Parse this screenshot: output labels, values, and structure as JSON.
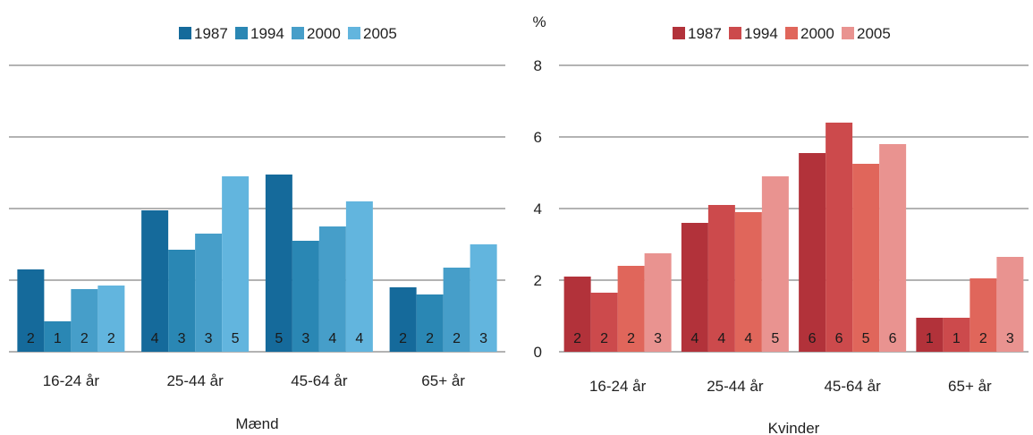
{
  "chart_data": [
    {
      "type": "bar",
      "title": "Mænd",
      "xlabel": "Mænd",
      "ylabel": "",
      "ylim": [
        0,
        8
      ],
      "grid": true,
      "legend": "top-center",
      "show_y_axis_labels": false,
      "categories": [
        "16-24 år",
        "25-44 år",
        "45-64 år",
        "65+ år"
      ],
      "series": [
        {
          "name": "1987",
          "color": "#156a9b",
          "values": [
            2.3,
            3.95,
            4.95,
            1.8
          ],
          "labels": [
            "2",
            "4",
            "5",
            "2"
          ]
        },
        {
          "name": "1994",
          "color": "#2a87b4",
          "values": [
            0.85,
            2.85,
            3.1,
            1.6
          ],
          "labels": [
            "1",
            "3",
            "3",
            "2"
          ]
        },
        {
          "name": "2000",
          "color": "#469ec9",
          "values": [
            1.75,
            3.3,
            3.5,
            2.35
          ],
          "labels": [
            "2",
            "3",
            "4",
            "2"
          ]
        },
        {
          "name": "2005",
          "color": "#62b5de",
          "values": [
            1.85,
            4.9,
            4.2,
            3.0
          ],
          "labels": [
            "2",
            "5",
            "4",
            "3"
          ]
        }
      ]
    },
    {
      "type": "bar",
      "title": "Kvinder",
      "xlabel": "Kvinder",
      "ylabel": "%",
      "ylim": [
        0,
        8
      ],
      "yticks": [
        "0",
        "2",
        "4",
        "6",
        "8"
      ],
      "grid": true,
      "legend": "top-center",
      "show_y_axis_labels": true,
      "categories": [
        "16-24 år",
        "25-44 år",
        "45-64 år",
        "65+ år"
      ],
      "series": [
        {
          "name": "1987",
          "color": "#b2323a",
          "values": [
            2.1,
            3.6,
            5.55,
            0.95
          ],
          "labels": [
            "2",
            "4",
            "6",
            "1"
          ]
        },
        {
          "name": "1994",
          "color": "#cc4a4c",
          "values": [
            1.65,
            4.1,
            6.4,
            0.95
          ],
          "labels": [
            "2",
            "4",
            "6",
            "1"
          ]
        },
        {
          "name": "2000",
          "color": "#e0665b",
          "values": [
            2.4,
            3.9,
            5.25,
            2.05
          ],
          "labels": [
            "2",
            "4",
            "5",
            "2"
          ]
        },
        {
          "name": "2005",
          "color": "#e99390",
          "values": [
            2.75,
            4.9,
            5.8,
            2.65
          ],
          "labels": [
            "3",
            "5",
            "6",
            "3"
          ]
        }
      ]
    }
  ]
}
